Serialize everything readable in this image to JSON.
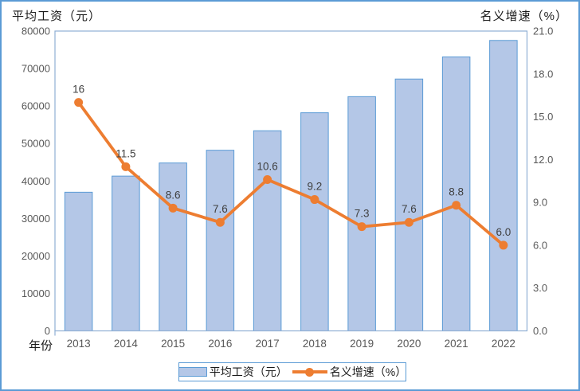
{
  "frame": {
    "border_color": "#5B9BD5",
    "background": "#FFFFFF"
  },
  "left_axis_title": "平均工资（元）",
  "right_axis_title": "名义增速（%）",
  "x_axis_label": "年份",
  "legend": {
    "bar_label": "平均工资（元）",
    "line_label": "名义增速（%）",
    "position": "bottom"
  },
  "colors": {
    "bar_fill": "#B4C7E7",
    "bar_border": "#5B9BD5",
    "line": "#ED7D31",
    "axis_line": "#8FAFD4",
    "tick_text": "#595959",
    "data_label_text": "#404040",
    "title_text": "#1a1a1a"
  },
  "chart_data": {
    "type": "bar",
    "subtype": "combo-bar-line-dual-axis",
    "title": "",
    "categories": [
      "2013",
      "2014",
      "2015",
      "2016",
      "2017",
      "2018",
      "2019",
      "2020",
      "2021",
      "2022"
    ],
    "series": [
      {
        "name": "平均工资（元）",
        "type": "bar",
        "axis": "left",
        "values": [
          37000,
          41300,
          44800,
          48200,
          53400,
          58200,
          62500,
          67200,
          73100,
          77500
        ]
      },
      {
        "name": "名义增速（%）",
        "type": "line",
        "axis": "right",
        "values": [
          16,
          11.5,
          8.6,
          7.6,
          10.6,
          9.2,
          7.3,
          7.6,
          8.8,
          6.0
        ],
        "labels": [
          "16",
          "11.5",
          "8.6",
          "7.6",
          "10.6",
          "9.2",
          "7.3",
          "7.6",
          "8.8",
          "6.0"
        ]
      }
    ],
    "left_axis": {
      "title": "平均工资（元）",
      "min": 0,
      "max": 80000,
      "step": 10000,
      "tick_labels": [
        "0",
        "10000",
        "20000",
        "30000",
        "40000",
        "50000",
        "60000",
        "70000",
        "80000"
      ]
    },
    "right_axis": {
      "title": "名义增速（%）",
      "min": 0,
      "max": 21,
      "step": 3,
      "tick_labels": [
        "0.0",
        "3.0",
        "6.0",
        "9.0",
        "12.0",
        "15.0",
        "18.0",
        "21.0"
      ]
    },
    "x_axis": {
      "label": "年份",
      "categories": [
        "2013",
        "2014",
        "2015",
        "2016",
        "2017",
        "2018",
        "2019",
        "2020",
        "2021",
        "2022"
      ]
    },
    "grid": false,
    "legend_position": "bottom"
  }
}
